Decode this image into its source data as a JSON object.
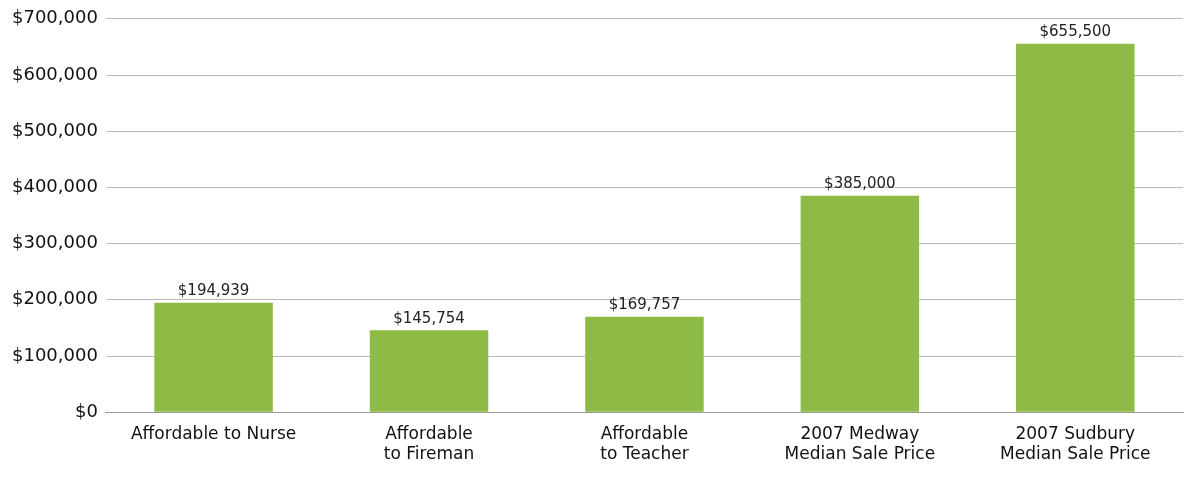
{
  "chart_data": {
    "type": "bar",
    "categories": [
      "Affordable to Nurse",
      "Affordable to Fireman",
      "Affordable to Teacher",
      "2007 Medway Median Sale Price",
      "2007 Sudbury Median Sale Price"
    ],
    "values": [
      194939,
      145754,
      169757,
      385000,
      655500
    ],
    "value_labels": [
      "$194,939",
      "$145,754",
      "$169,757",
      "$385,000",
      "$655,500"
    ],
    "color": "#8dbb45",
    "ylim": [
      0,
      700000
    ],
    "yticks": [
      {
        "value": 0,
        "label": "$0"
      },
      {
        "value": 100000,
        "label": "$100,000"
      },
      {
        "value": 200000,
        "label": "$200,000"
      },
      {
        "value": 300000,
        "label": "$300,000"
      },
      {
        "value": 400000,
        "label": "$400,000"
      },
      {
        "value": 500000,
        "label": "$500,000"
      },
      {
        "value": 600000,
        "label": "$600,000"
      },
      {
        "value": 700000,
        "label": "$700,000"
      }
    ],
    "grid": "y"
  }
}
